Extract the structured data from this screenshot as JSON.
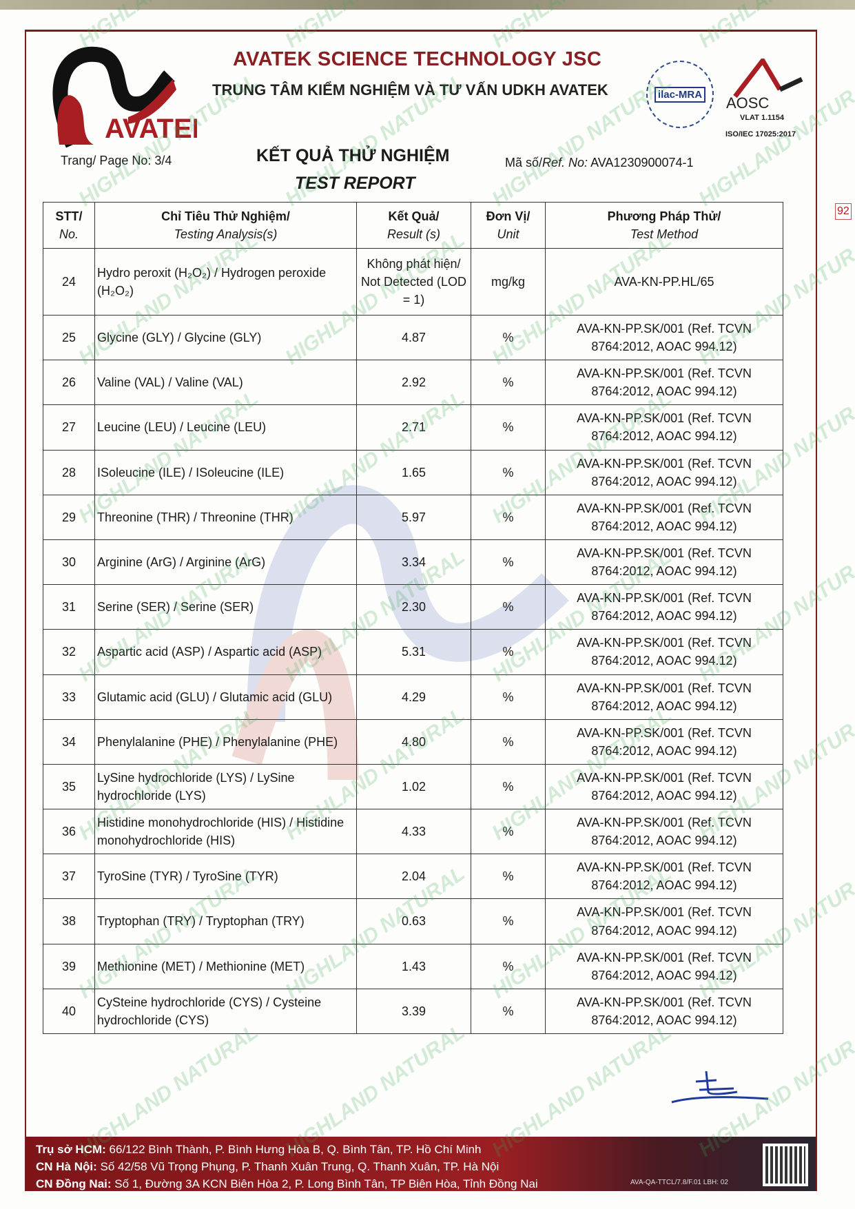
{
  "header": {
    "logo_text": "AVATEK",
    "company_name": "AVATEK SCIENCE TECHNOLOGY JSC",
    "center_name": "TRUNG TÂM KIỂM NGHIỆM VÀ TƯ VẤN UDKH AVATEK",
    "ilac_text": "ilac-MRA",
    "aosc_text": "AOSC",
    "aosc_vlat": "VLAT 1.1154",
    "iso": "ISO/IEC 17025:2017",
    "page_no": "Trang/ Page No: 3/4",
    "title_vn": "KẾT QUẢ THỬ NGHIỆM",
    "title_en": "TEST REPORT",
    "ref_label_vn": "Mã số/",
    "ref_label_en": "Ref. No:",
    "ref_no": "AVA1230900074-1"
  },
  "table": {
    "headers": [
      {
        "vn": "STT/",
        "en": "No."
      },
      {
        "vn": "Chỉ Tiêu Thử Nghiệm/",
        "en": "Testing Analysis(s)"
      },
      {
        "vn": "Kết Quả/",
        "en": "Result (s)"
      },
      {
        "vn": "Đơn Vị/",
        "en": "Unit"
      },
      {
        "vn": "Phương Pháp Thử/",
        "en": "Test Method"
      }
    ],
    "rows": [
      {
        "no": "24",
        "analysis": "Hydro peroxit (H₂O₂) / Hydrogen peroxide (H₂O₂)",
        "result": "Không phát hiện/ Not Detected (LOD = 1)",
        "unit": "mg/kg",
        "method": "AVA-KN-PP.HL/65"
      },
      {
        "no": "25",
        "analysis": "Glycine (GLY) / Glycine (GLY)",
        "result": "4.87",
        "unit": "%",
        "method": "AVA-KN-PP.SK/001 (Ref. TCVN 8764:2012, AOAC 994.12)"
      },
      {
        "no": "26",
        "analysis": "Valine (VAL) / Valine (VAL)",
        "result": "2.92",
        "unit": "%",
        "method": "AVA-KN-PP.SK/001 (Ref. TCVN 8764:2012, AOAC 994.12)"
      },
      {
        "no": "27",
        "analysis": "Leucine (LEU) / Leucine (LEU)",
        "result": "2.71",
        "unit": "%",
        "method": "AVA-KN-PP.SK/001 (Ref. TCVN 8764:2012, AOAC 994.12)"
      },
      {
        "no": "28",
        "analysis": "ISoleucine (ILE) / ISoleucine (ILE)",
        "result": "1.65",
        "unit": "%",
        "method": "AVA-KN-PP.SK/001 (Ref. TCVN 8764:2012, AOAC 994.12)"
      },
      {
        "no": "29",
        "analysis": "Threonine (THR) / Threonine (THR)",
        "result": "5.97",
        "unit": "%",
        "method": "AVA-KN-PP.SK/001 (Ref. TCVN 8764:2012, AOAC 994.12)"
      },
      {
        "no": "30",
        "analysis": "Arginine (ArG) / Arginine (ArG)",
        "result": "3.34",
        "unit": "%",
        "method": "AVA-KN-PP.SK/001 (Ref. TCVN 8764:2012, AOAC 994.12)"
      },
      {
        "no": "31",
        "analysis": "Serine (SER) / Serine (SER)",
        "result": "2.30",
        "unit": "%",
        "method": "AVA-KN-PP.SK/001 (Ref. TCVN 8764:2012, AOAC 994.12)"
      },
      {
        "no": "32",
        "analysis": "Aspartic acid (ASP) / Aspartic acid (ASP)",
        "result": "5.31",
        "unit": "%",
        "method": "AVA-KN-PP.SK/001 (Ref. TCVN 8764:2012, AOAC 994.12)"
      },
      {
        "no": "33",
        "analysis": "Glutamic acid (GLU) / Glutamic acid (GLU)",
        "result": "4.29",
        "unit": "%",
        "method": "AVA-KN-PP.SK/001 (Ref. TCVN 8764:2012, AOAC 994.12)"
      },
      {
        "no": "34",
        "analysis": "Phenylalanine (PHE) / Phenylalanine (PHE)",
        "result": "4.80",
        "unit": "%",
        "method": "AVA-KN-PP.SK/001 (Ref. TCVN 8764:2012, AOAC 994.12)"
      },
      {
        "no": "35",
        "analysis": "LySine hydrochloride (LYS) / LySine hydrochloride (LYS)",
        "result": "1.02",
        "unit": "%",
        "method": "AVA-KN-PP.SK/001 (Ref. TCVN 8764:2012, AOAC 994.12)"
      },
      {
        "no": "36",
        "analysis": "Histidine monohydrochloride (HIS) / Histidine monohydrochloride (HIS)",
        "result": "4.33",
        "unit": "%",
        "method": "AVA-KN-PP.SK/001 (Ref. TCVN 8764:2012, AOAC 994.12)"
      },
      {
        "no": "37",
        "analysis": "TyroSine (TYR) / TyroSine (TYR)",
        "result": "2.04",
        "unit": "%",
        "method": "AVA-KN-PP.SK/001 (Ref. TCVN 8764:2012, AOAC 994.12)"
      },
      {
        "no": "38",
        "analysis": "Tryptophan (TRY) / Tryptophan (TRY)",
        "result": "0.63",
        "unit": "%",
        "method": "AVA-KN-PP.SK/001 (Ref. TCVN 8764:2012, AOAC 994.12)"
      },
      {
        "no": "39",
        "analysis": "Methionine (MET) / Methionine (MET)",
        "result": "1.43",
        "unit": "%",
        "method": "AVA-KN-PP.SK/001 (Ref. TCVN 8764:2012, AOAC 994.12)"
      },
      {
        "no": "40",
        "analysis": "CySteine hydrochloride (CYS) / Cysteine hydrochloride (CYS)",
        "result": "3.39",
        "unit": "%",
        "method": "AVA-KN-PP.SK/001 (Ref. TCVN 8764:2012, AOAC 994.12)"
      }
    ]
  },
  "footer": {
    "lines": [
      {
        "label": "Trụ sở HCM:",
        "text": " 66/122 Bình Thành, P. Bình Hưng Hòa B, Q. Bình Tân, TP. Hồ Chí Minh"
      },
      {
        "label": "CN Hà Nội:",
        "text": " Số 42/58 Vũ Trọng Phụng, P. Thanh Xuân Trung, Q. Thanh Xuân, TP. Hà Nội"
      },
      {
        "label": "CN Đồng Nai:",
        "text": " Số 1, Đường 3A KCN Biên Hòa 2, P. Long Bình Tân, TP Biên Hòa, Tỉnh Đồng Nai"
      }
    ],
    "form_code": "AVA-QA-TTCL/7.8/F.01 LBH: 02"
  },
  "side_mark": "92",
  "watermark": "HIGHLAND NATURAL",
  "colors": {
    "brand_red": "#8a1e22",
    "watermark_green": "#3caa50"
  }
}
